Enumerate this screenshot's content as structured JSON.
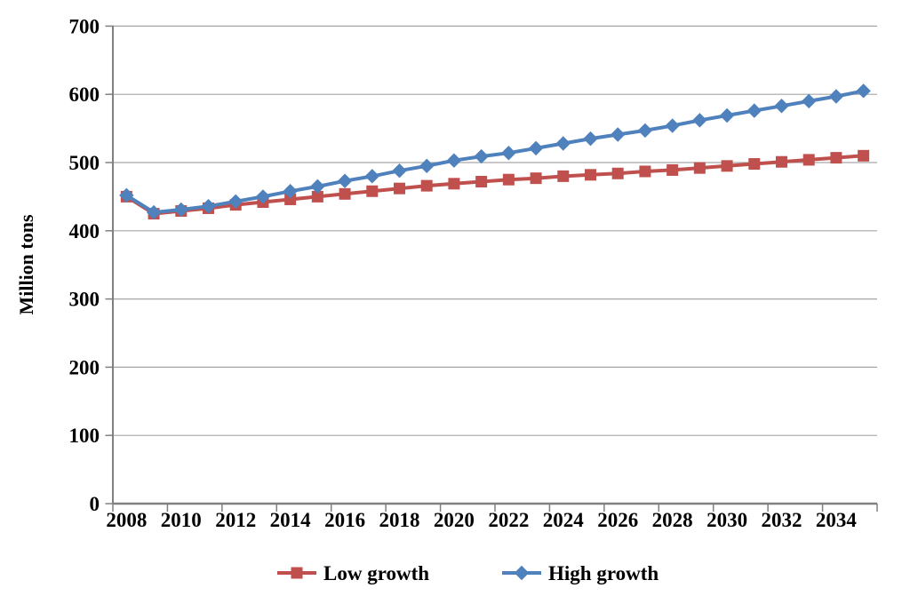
{
  "chart_data": {
    "type": "line",
    "title": "",
    "xlabel": "",
    "ylabel": "Million tons",
    "ylim": [
      0,
      700
    ],
    "yticks": [
      0,
      100,
      200,
      300,
      400,
      500,
      600,
      700
    ],
    "x": [
      2008,
      2009,
      2010,
      2011,
      2012,
      2013,
      2014,
      2015,
      2016,
      2017,
      2018,
      2019,
      2020,
      2021,
      2022,
      2023,
      2024,
      2025,
      2026,
      2027,
      2028,
      2029,
      2030,
      2031,
      2032,
      2033,
      2034,
      2035
    ],
    "xtick_labels": [
      "2008",
      "2010",
      "2012",
      "2014",
      "2016",
      "2018",
      "2020",
      "2022",
      "2024",
      "2026",
      "2028",
      "2030",
      "2032",
      "2034"
    ],
    "grid": "horizontal",
    "legend_position": "bottom",
    "background_color": "#ffffff",
    "grid_color": "#a6a6a6",
    "axis_color": "#808080",
    "text_color": "#000000",
    "series": [
      {
        "name": "Low growth",
        "color": "#C0504D",
        "marker": "square",
        "values": [
          450,
          425,
          429,
          433,
          438,
          442,
          446,
          450,
          454,
          458,
          462,
          466,
          469,
          472,
          475,
          477,
          480,
          482,
          484,
          487,
          489,
          492,
          495,
          498,
          501,
          504,
          507,
          510
        ]
      },
      {
        "name": "High growth",
        "color": "#4F81BD",
        "marker": "diamond",
        "values": [
          452,
          427,
          431,
          436,
          443,
          450,
          458,
          465,
          473,
          480,
          488,
          495,
          503,
          509,
          514,
          521,
          528,
          535,
          541,
          547,
          554,
          562,
          569,
          576,
          583,
          590,
          597,
          605
        ]
      }
    ]
  }
}
